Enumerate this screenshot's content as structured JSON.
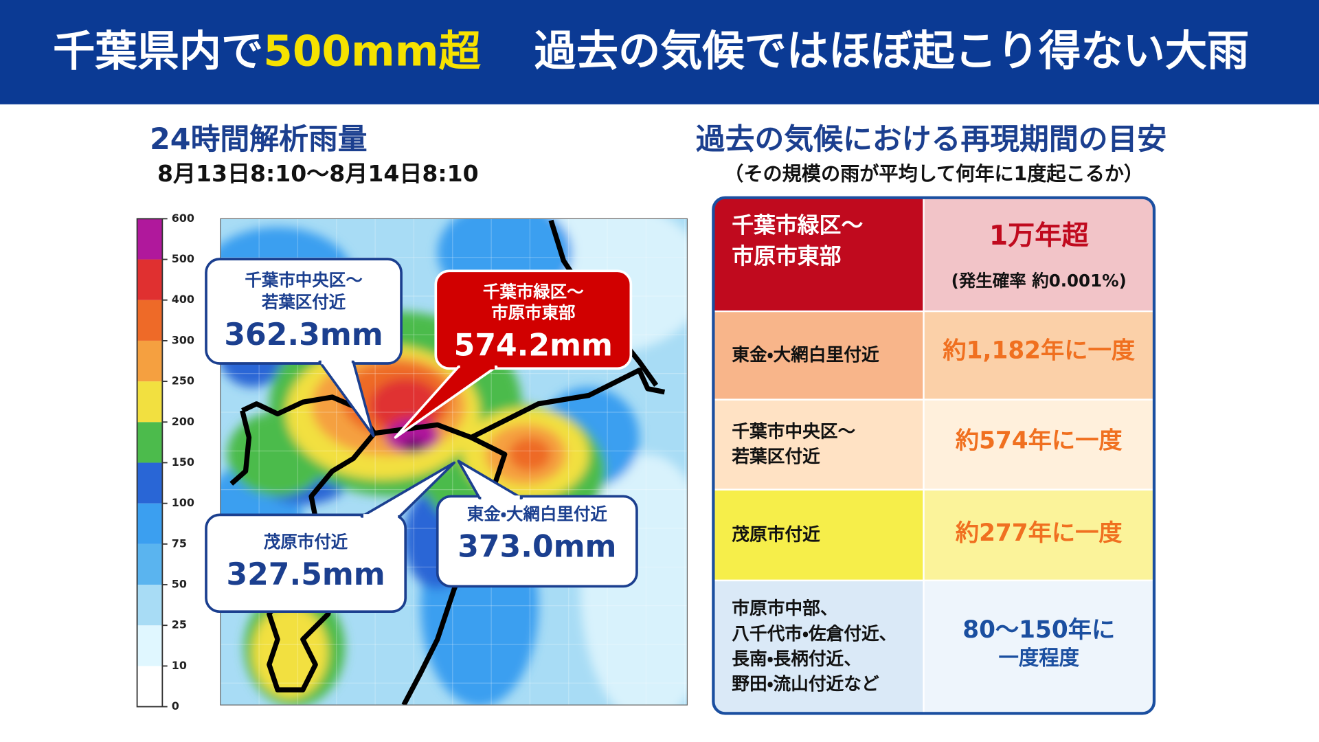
{
  "header": {
    "title_pre": "千葉県内で",
    "title_highlight": "500mm超",
    "title_post": "過去の気候ではほぼ起こり得ない大雨"
  },
  "map_panel": {
    "title": "24時間解析雨量",
    "period": "8月13日8:10〜8月14日8:10",
    "legend_ticks": [
      "0",
      "10",
      "25",
      "50",
      "75",
      "100",
      "150",
      "200",
      "250",
      "300",
      "400",
      "500",
      "600"
    ],
    "callouts": [
      {
        "lines": [
          "千葉市中央区〜",
          "若葉区付近"
        ],
        "value": "362.3mm"
      },
      {
        "lines": [
          "千葉市緑区〜",
          "市原市東部"
        ],
        "value": "574.2mm"
      },
      {
        "lines": [
          "茂原市付近"
        ],
        "value": "327.5mm"
      },
      {
        "lines": [
          "東金・大網白里付近"
        ],
        "value": "373.0mm"
      }
    ]
  },
  "table_panel": {
    "title": "過去の気候における再現期間の目安",
    "subtitle": "（その規模の雨が平均して何年に1度起こるか）",
    "rows": [
      {
        "area_lines": [
          "千葉市緑区〜",
          "市原市東部"
        ],
        "period_lines": [
          "1万年超",
          "(発生確率 約0.001%)"
        ]
      },
      {
        "area_lines": [
          "東金・大網白里付近"
        ],
        "period_lines": [
          "約1,182年に一度"
        ]
      },
      {
        "area_lines": [
          "千葉市中央区〜",
          "若葉区付近"
        ],
        "period_lines": [
          "約574年に一度"
        ]
      },
      {
        "area_lines": [
          "茂原市付近"
        ],
        "period_lines": [
          "約277年に一度"
        ]
      },
      {
        "area_lines": [
          "市原市中部、",
          "八千代市・佐倉付近、",
          "長南・長柄付近、",
          "野田・流山付近など"
        ],
        "period_lines": [
          "80〜150年に",
          "一度程度"
        ]
      }
    ]
  }
}
